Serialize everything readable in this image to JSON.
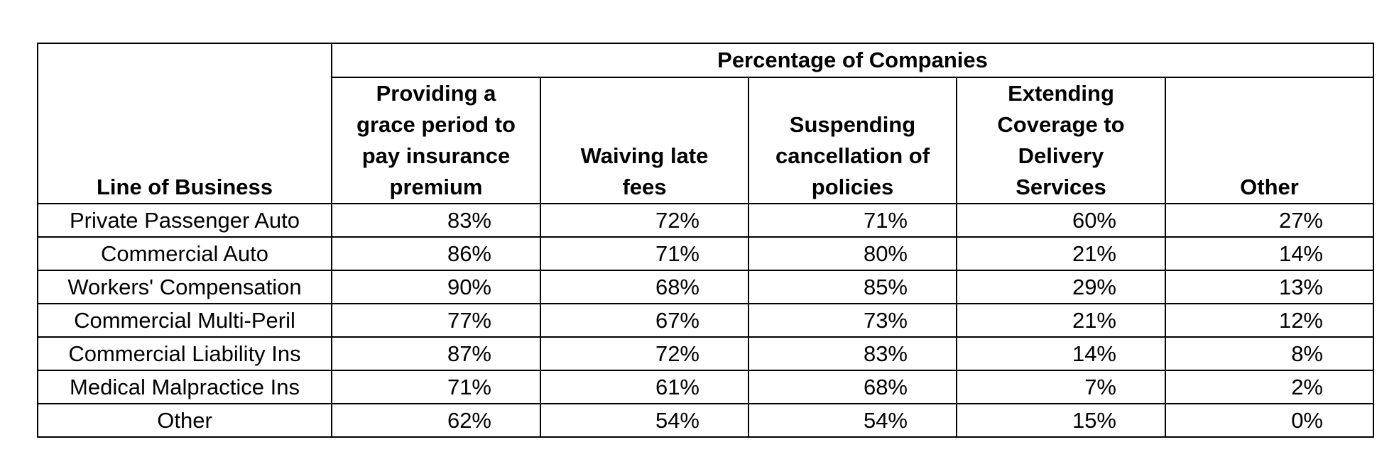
{
  "chart_data": {
    "type": "table",
    "row_header": "Line of Business",
    "group_header": "Percentage of Companies",
    "columns": [
      [
        "Providing a",
        "grace period to",
        "pay insurance",
        "premium"
      ],
      [
        "Waiving late",
        "fees"
      ],
      [
        "Suspending",
        "cancellation of",
        "policies"
      ],
      [
        "Extending",
        "Coverage to",
        "Delivery",
        "Services"
      ],
      [
        "Other"
      ]
    ],
    "rows": [
      {
        "label": "Private Passenger Auto",
        "values": [
          "83%",
          "72%",
          "71%",
          "60%",
          "27%"
        ]
      },
      {
        "label": "Commercial Auto",
        "values": [
          "86%",
          "71%",
          "80%",
          "21%",
          "14%"
        ]
      },
      {
        "label": "Workers' Compensation",
        "values": [
          "90%",
          "68%",
          "85%",
          "29%",
          "13%"
        ]
      },
      {
        "label": "Commercial Multi-Peril",
        "values": [
          "77%",
          "67%",
          "73%",
          "21%",
          "12%"
        ]
      },
      {
        "label": "Commercial Liability Ins",
        "values": [
          "87%",
          "72%",
          "83%",
          "14%",
          "8%"
        ]
      },
      {
        "label": "Medical Malpractice Ins",
        "values": [
          "71%",
          "61%",
          "68%",
          "7%",
          "2%"
        ]
      },
      {
        "label": "Other",
        "values": [
          "62%",
          "54%",
          "54%",
          "15%",
          "0%"
        ]
      }
    ]
  }
}
